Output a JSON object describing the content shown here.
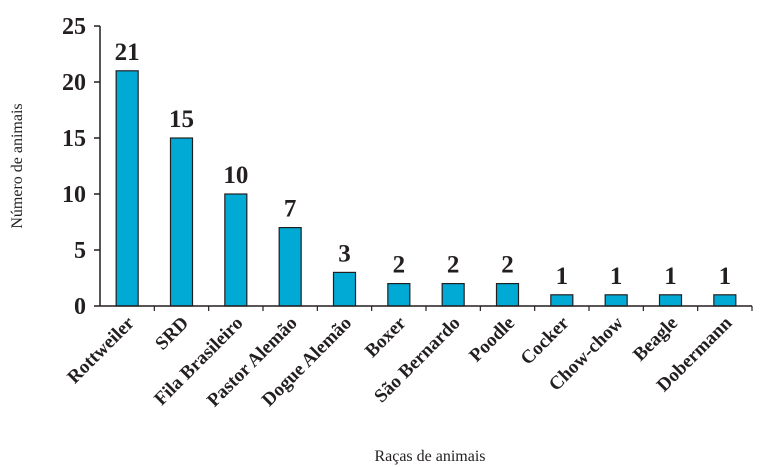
{
  "chart_data": {
    "type": "bar",
    "title": "",
    "xlabel": "Raças de animais",
    "ylabel": "Número de animais",
    "ylim": [
      0,
      25
    ],
    "yticks": [
      0,
      5,
      10,
      15,
      20,
      25
    ],
    "grid": false,
    "legend": "none",
    "bar_color": "#00aad4",
    "categories": [
      "Rottweiler",
      "SRD",
      "Fila Brasileiro",
      "Pastor Alemão",
      "Dogue Alemão",
      "Boxer",
      "São Bernardo",
      "Poodle",
      "Cocker",
      "Chow-chow",
      "Beagle",
      "Dobermann"
    ],
    "values": [
      21,
      15,
      10,
      7,
      3,
      2,
      2,
      2,
      1,
      1,
      1,
      1
    ],
    "data_labels": [
      "21",
      "15",
      "10",
      "7",
      "3",
      "2",
      "2",
      "2",
      "1",
      "1",
      "1",
      "1"
    ]
  }
}
